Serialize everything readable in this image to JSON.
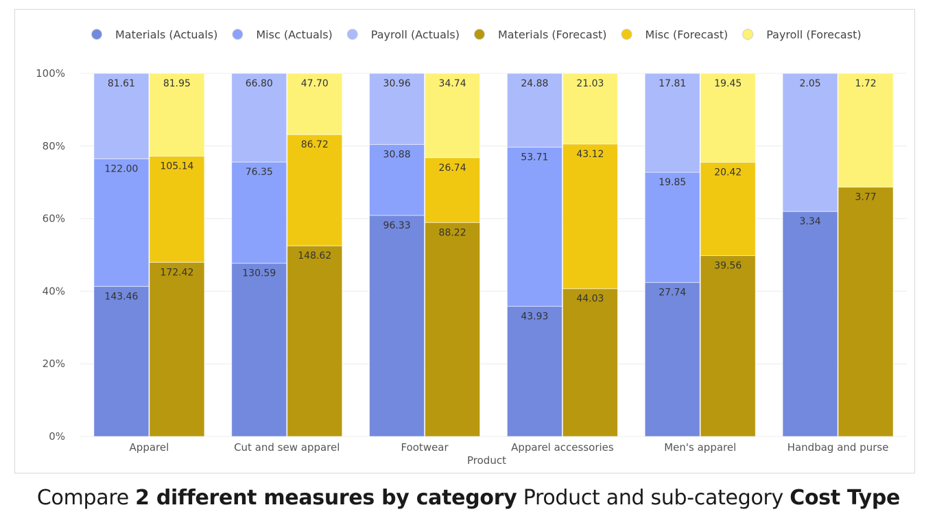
{
  "caption": {
    "part1": "Compare ",
    "bold1": "2 different measures by category",
    "part2": " Product and sub-category ",
    "bold2": "Cost Type"
  },
  "chart_data": {
    "type": "bar",
    "stacking": "percent",
    "title": "",
    "xlabel": "Product",
    "ylabel": "",
    "ylim": [
      0,
      100
    ],
    "y_ticks": [
      "0%",
      "20%",
      "40%",
      "60%",
      "80%",
      "100%"
    ],
    "grid": true,
    "legend_position": "top",
    "categories": [
      "Apparel",
      "Cut and sew apparel",
      "Footwear",
      "Apparel accessories",
      "Men's apparel",
      "Handbag and purse"
    ],
    "groups": [
      {
        "name": "Actuals",
        "series": [
          {
            "name": "Materials (Actuals)",
            "color": "#7289dd",
            "values": [
              143.46,
              130.59,
              96.33,
              43.93,
              27.74,
              3.34
            ]
          },
          {
            "name": "Misc (Actuals)",
            "color": "#8aa2fc",
            "values": [
              122.0,
              76.35,
              30.88,
              53.71,
              19.85,
              null
            ]
          },
          {
            "name": "Payroll (Actuals)",
            "color": "#abbafa",
            "values": [
              81.61,
              66.8,
              30.96,
              24.88,
              17.81,
              2.05
            ]
          }
        ]
      },
      {
        "name": "Forecast",
        "series": [
          {
            "name": "Materials (Forecast)",
            "color": "#b8980e",
            "values": [
              172.42,
              148.62,
              88.22,
              44.03,
              39.56,
              3.77
            ]
          },
          {
            "name": "Misc (Forecast)",
            "color": "#f0c812",
            "values": [
              105.14,
              86.72,
              26.74,
              43.12,
              20.42,
              null
            ]
          },
          {
            "name": "Payroll (Forecast)",
            "color": "#fdf275",
            "values": [
              81.95,
              47.7,
              34.74,
              21.03,
              19.45,
              1.72
            ]
          }
        ]
      }
    ],
    "value_labels": {
      "Materials (Actuals)": [
        "143.46",
        "130.59",
        "96.33",
        "43.93",
        "27.74",
        "3.34"
      ],
      "Misc (Actuals)": [
        "122.00",
        "76.35",
        "30.88",
        "53.71",
        "19.85",
        ""
      ],
      "Payroll (Actuals)": [
        "81.61",
        "66.80",
        "30.96",
        "24.88",
        "17.81",
        "2.05"
      ],
      "Materials (Forecast)": [
        "172.42",
        "148.62",
        "88.22",
        "44.03",
        "39.56",
        "3.77"
      ],
      "Misc (Forecast)": [
        "105.14",
        "86.72",
        "26.74",
        "43.12",
        "20.42",
        ""
      ],
      "Payroll (Forecast)": [
        "81.95",
        "47.70",
        "34.74",
        "21.03",
        "19.45",
        "1.72"
      ]
    }
  }
}
